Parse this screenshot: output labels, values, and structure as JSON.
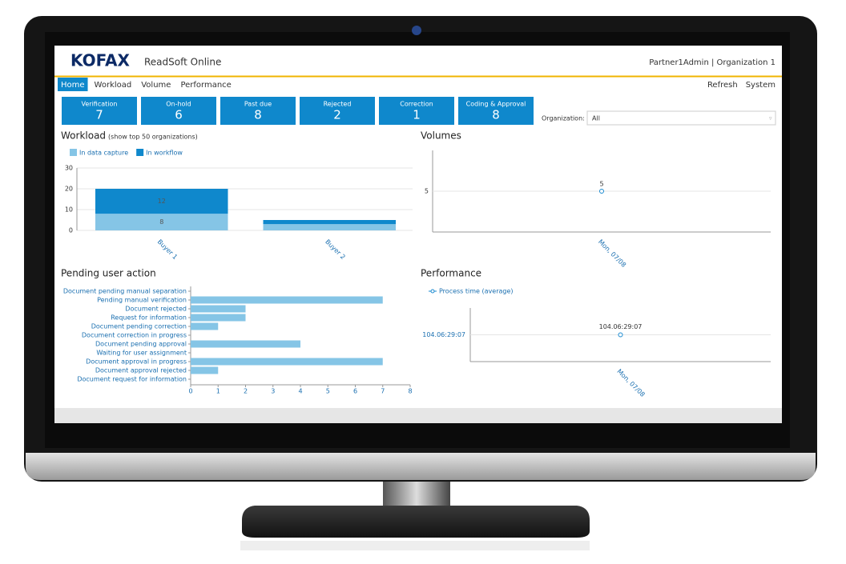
{
  "header": {
    "logo": "KOFAX",
    "app": "ReadSoft Online",
    "user": "Partner1Admin | Organization 1"
  },
  "nav": {
    "left": [
      "Home",
      "Workload",
      "Volume",
      "Performance"
    ],
    "right": [
      "Refresh",
      "System"
    ]
  },
  "tiles": [
    {
      "label": "Verification",
      "value": 7
    },
    {
      "label": "On-hold",
      "value": 6
    },
    {
      "label": "Past due",
      "value": 8
    },
    {
      "label": "Rejected",
      "value": 2
    },
    {
      "label": "Correction",
      "value": 1
    },
    {
      "label": "Coding & Approval",
      "value": 8
    }
  ],
  "organization": {
    "label": "Organization:",
    "value": "All"
  },
  "workload": {
    "type": "bar",
    "title": "Workload",
    "subtitle": "(show top 50 organizations)",
    "categories": [
      "Buyer 1",
      "Buyer 2"
    ],
    "series": [
      {
        "name": "In data capture",
        "color": "#85c5e6",
        "values": [
          8,
          3
        ]
      },
      {
        "name": "In workflow",
        "color": "#0f88cc",
        "values": [
          12,
          2
        ]
      }
    ],
    "ylim": [
      0,
      30
    ],
    "yticks": [
      0,
      10,
      20,
      30
    ],
    "grid": true
  },
  "volumes": {
    "type": "line",
    "title": "Volumes",
    "x": [
      "Mon, 07/08"
    ],
    "values": [
      5
    ],
    "ylim": [
      0,
      10
    ],
    "yticks": [
      5
    ],
    "color": "#1a8ad0",
    "grid": true
  },
  "pending": {
    "type": "bar",
    "orientation": "horizontal",
    "title": "Pending user action",
    "categories": [
      "Document pending manual separation",
      "Pending manual verification",
      "Document rejected",
      "Request for information",
      "Document pending correction",
      "Document correction in progress",
      "Document pending approval",
      "Waiting for user assignment",
      "Document approval in progress",
      "Document approval rejected",
      "Document request for information"
    ],
    "values": [
      0,
      7,
      2,
      2,
      1,
      0,
      4,
      0,
      7,
      1,
      0
    ],
    "color": "#85c5e6",
    "xlim": [
      0,
      8
    ],
    "xticks": [
      0,
      1,
      2,
      3,
      4,
      5,
      6,
      7,
      8
    ]
  },
  "performance": {
    "type": "line",
    "title": "Performance",
    "series": [
      {
        "name": "Process time (average)",
        "color": "#1a8ad0",
        "values": [
          104.2702
        ],
        "value_labels": [
          "104.06:29:07"
        ]
      }
    ],
    "x": [
      "Mon, 07/08"
    ],
    "ylim": [
      103.2702,
      105.2702
    ],
    "yticks": [
      {
        "value": 104.2702,
        "label": "104.06:29:07"
      }
    ],
    "grid": true
  }
}
